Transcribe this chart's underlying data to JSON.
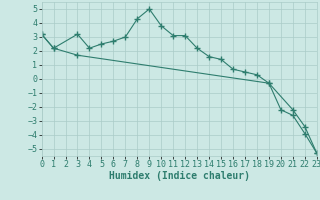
{
  "xlabel": "Humidex (Indice chaleur)",
  "xlim": [
    0,
    23
  ],
  "ylim": [
    -5.5,
    5.5
  ],
  "xticks": [
    0,
    1,
    2,
    3,
    4,
    5,
    6,
    7,
    8,
    9,
    10,
    11,
    12,
    13,
    14,
    15,
    16,
    17,
    18,
    19,
    20,
    21,
    22,
    23
  ],
  "yticks": [
    -5,
    -4,
    -3,
    -2,
    -1,
    0,
    1,
    2,
    3,
    4,
    5
  ],
  "line1_x": [
    0,
    1,
    3,
    4,
    5,
    6,
    7,
    8,
    9,
    10,
    11,
    12,
    13,
    14,
    15,
    16,
    17,
    18,
    19,
    20,
    21,
    22,
    23
  ],
  "line1_y": [
    3.2,
    2.2,
    3.2,
    2.2,
    2.5,
    2.7,
    3.0,
    4.3,
    5.0,
    3.8,
    3.1,
    3.1,
    2.2,
    1.6,
    1.4,
    0.7,
    0.5,
    0.3,
    -0.3,
    -2.2,
    -2.6,
    -3.9,
    -5.3
  ],
  "line2_x": [
    0,
    1,
    3,
    19,
    21,
    22,
    23
  ],
  "line2_y": [
    3.2,
    2.2,
    1.7,
    -0.3,
    -2.2,
    -3.4,
    -5.3
  ],
  "line_color": "#2e7d6e",
  "bg_color": "#cce8e4",
  "grid_color": "#aaccc8",
  "tick_fontsize": 6,
  "label_fontsize": 7
}
